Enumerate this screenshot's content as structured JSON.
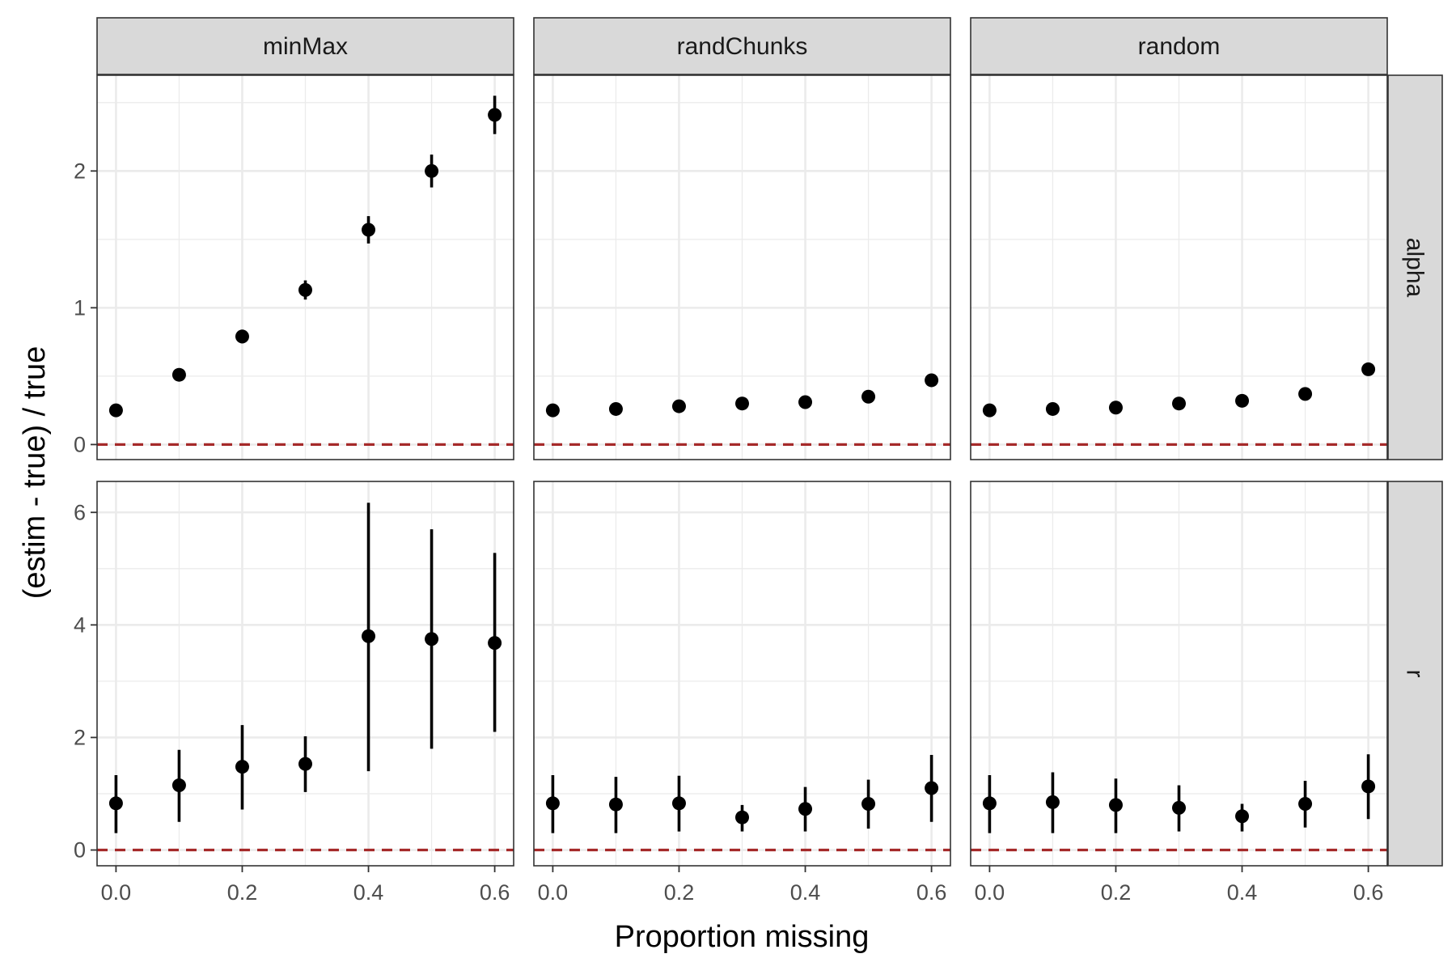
{
  "chart_data": {
    "type": "scatter",
    "subtype": "faceted point-range (point with error bars)",
    "xlabel": "Proportion missing",
    "ylabel": "(estim - true) / true",
    "x_ticks": [
      "0.0",
      "0.2",
      "0.4",
      "0.6"
    ],
    "x_values": [
      0.0,
      0.1,
      0.2,
      0.3,
      0.4,
      0.5,
      0.6
    ],
    "xlim": [
      -0.03,
      0.63
    ],
    "column_facets": [
      "minMax",
      "randChunks",
      "random"
    ],
    "row_facets": [
      {
        "label": "alpha",
        "ylim": [
          -0.11,
          2.7
        ],
        "y_ticks": [
          0,
          1,
          2
        ]
      },
      {
        "label": "r",
        "ylim": [
          -0.28,
          6.55
        ],
        "y_ticks": [
          0,
          2,
          4,
          6
        ]
      }
    ],
    "reference_line": {
      "y": 0,
      "style": "dashed",
      "color": "#a52a2a"
    },
    "point_color": "#000000",
    "grid": true,
    "panels": [
      {
        "row": "alpha",
        "col": "minMax",
        "y": [
          0.25,
          0.51,
          0.79,
          1.13,
          1.57,
          2.0,
          2.41
        ],
        "lower": [
          0.23,
          0.49,
          0.74,
          1.06,
          1.47,
          1.88,
          2.27
        ],
        "upper": [
          0.27,
          0.53,
          0.84,
          1.2,
          1.67,
          2.12,
          2.55
        ]
      },
      {
        "row": "alpha",
        "col": "randChunks",
        "y": [
          0.25,
          0.26,
          0.28,
          0.3,
          0.31,
          0.35,
          0.47
        ],
        "lower": [
          0.23,
          0.24,
          0.26,
          0.28,
          0.29,
          0.33,
          0.45
        ],
        "upper": [
          0.27,
          0.28,
          0.3,
          0.32,
          0.33,
          0.37,
          0.49
        ]
      },
      {
        "row": "alpha",
        "col": "random",
        "y": [
          0.25,
          0.26,
          0.27,
          0.3,
          0.32,
          0.37,
          0.55
        ],
        "lower": [
          0.23,
          0.24,
          0.25,
          0.28,
          0.3,
          0.35,
          0.53
        ],
        "upper": [
          0.27,
          0.28,
          0.29,
          0.32,
          0.34,
          0.39,
          0.57
        ]
      },
      {
        "row": "r",
        "col": "minMax",
        "y": [
          0.83,
          1.15,
          1.48,
          1.53,
          3.8,
          3.75,
          3.68
        ],
        "lower": [
          0.3,
          0.5,
          0.72,
          1.03,
          1.4,
          1.8,
          2.1
        ],
        "upper": [
          1.33,
          1.78,
          2.22,
          2.02,
          6.17,
          5.7,
          5.28
        ]
      },
      {
        "row": "r",
        "col": "randChunks",
        "y": [
          0.83,
          0.81,
          0.83,
          0.58,
          0.73,
          0.82,
          1.1
        ],
        "lower": [
          0.3,
          0.3,
          0.33,
          0.33,
          0.33,
          0.38,
          0.5
        ],
        "upper": [
          1.33,
          1.3,
          1.32,
          0.8,
          1.12,
          1.25,
          1.69
        ]
      },
      {
        "row": "r",
        "col": "random",
        "y": [
          0.83,
          0.85,
          0.8,
          0.75,
          0.6,
          0.82,
          1.13
        ],
        "lower": [
          0.3,
          0.3,
          0.3,
          0.33,
          0.33,
          0.4,
          0.55
        ],
        "upper": [
          1.33,
          1.38,
          1.27,
          1.15,
          0.82,
          1.23,
          1.7
        ]
      }
    ]
  }
}
